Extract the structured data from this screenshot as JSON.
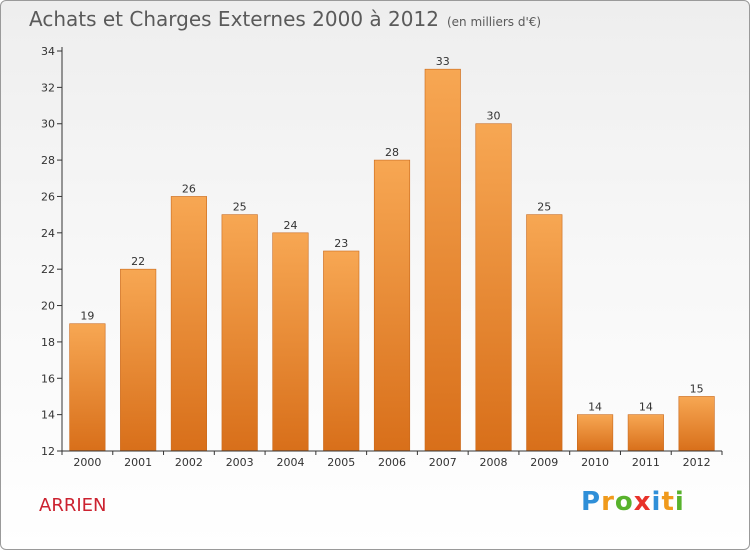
{
  "chart_data": {
    "type": "bar",
    "title": "Achats et Charges Externes 2000 à 2012",
    "subtitle": "(en milliers d'€)",
    "categories": [
      "2000",
      "2001",
      "2002",
      "2003",
      "2004",
      "2005",
      "2006",
      "2007",
      "2008",
      "2009",
      "2010",
      "2011",
      "2012"
    ],
    "values": [
      19,
      22,
      26,
      25,
      24,
      23,
      28,
      33,
      30,
      25,
      14,
      14,
      15
    ],
    "ylim": [
      12,
      34
    ],
    "yticks": [
      12,
      14,
      16,
      18,
      20,
      22,
      24,
      26,
      28,
      30,
      32,
      34
    ],
    "xlabel": "",
    "ylabel": "",
    "grid": false,
    "data_labels": true
  },
  "place_name": "ARRIEN",
  "logo": {
    "text": "Proxiti",
    "letters": [
      {
        "ch": "P",
        "color": "#2f8fd8"
      },
      {
        "ch": "r",
        "color": "#f09a1c"
      },
      {
        "ch": "o",
        "color": "#58b22c"
      },
      {
        "ch": "x",
        "color": "#e8322a"
      },
      {
        "ch": "i",
        "color": "#2f8fd8"
      },
      {
        "ch": "t",
        "color": "#f09a1c"
      },
      {
        "ch": "i",
        "color": "#58b22c"
      }
    ]
  },
  "colors": {
    "bar_top": "#f7a753",
    "bar_bottom": "#d86f1a",
    "axis": "#333333",
    "title": "#5a5a5a",
    "place": "#cc2230"
  }
}
